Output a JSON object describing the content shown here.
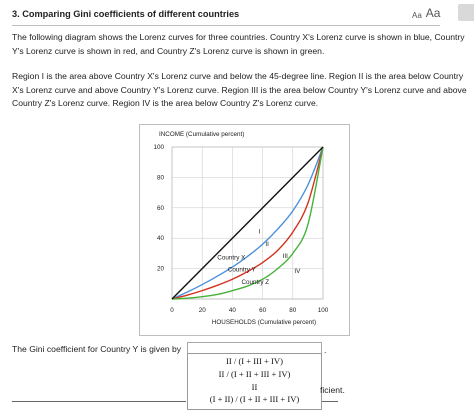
{
  "header": {
    "title": "3. Comparing Gini coefficients of different countries",
    "font_small": "Aa",
    "font_large": "Aa"
  },
  "text": {
    "p1": "The following diagram shows the Lorenz curves for three countries. Country X's Lorenz curve is shown in blue, Country Y's Lorenz curve is shown in red, and Country Z's Lorenz curve is shown in green.",
    "p2": "Region I is the area above Country X's Lorenz curve and below the 45-degree line. Region II is the area below Country X's Lorenz curve and above Country Y's Lorenz curve. Region III is the area below Country Y's Lorenz curve and above Country Z's Lorenz curve. Region IV is the area below Country Z's Lorenz curve."
  },
  "chart_data": {
    "type": "line",
    "ylabel": "INCOME (Cumulative percent)",
    "xlabel": "HOUSEHOLDS (Cumulative percent)",
    "xlim": [
      0,
      100
    ],
    "ylim": [
      0,
      100
    ],
    "x_ticks": [
      0,
      20,
      40,
      60,
      80,
      100
    ],
    "y_ticks": [
      20,
      40,
      60,
      80,
      100
    ],
    "grid": true,
    "series": [
      {
        "name": "Country X",
        "color": "#4a90d9",
        "x": [
          0,
          10,
          20,
          30,
          40,
          50,
          60,
          70,
          80,
          90,
          100
        ],
        "y": [
          0,
          4.5,
          9.5,
          15,
          21,
          28,
          36,
          46,
          58,
          75,
          100
        ]
      },
      {
        "name": "Country Y",
        "color": "#d2321e",
        "x": [
          0,
          10,
          20,
          30,
          40,
          50,
          60,
          70,
          80,
          90,
          100
        ],
        "y": [
          0,
          2.5,
          5.5,
          9,
          13,
          18,
          24,
          32,
          44,
          63,
          100
        ]
      },
      {
        "name": "Country Z",
        "color": "#46b23a",
        "x": [
          0,
          10,
          20,
          30,
          40,
          50,
          60,
          70,
          80,
          90,
          100
        ],
        "y": [
          0,
          0.5,
          1.5,
          3,
          5.5,
          8.5,
          13,
          20,
          30,
          49,
          100
        ]
      },
      {
        "name": "",
        "color": "#111111",
        "x": [
          0,
          100
        ],
        "y": [
          0,
          100
        ]
      }
    ],
    "curve_labels": [
      {
        "text": "Country X",
        "x": 30,
        "y": 26
      },
      {
        "text": "Country Y",
        "x": 37,
        "y": 18
      },
      {
        "text": "Country Z",
        "x": 46,
        "y": 10
      }
    ],
    "region_labels": [
      {
        "text": "I",
        "x": 58,
        "y": 43
      },
      {
        "text": "II",
        "x": 63,
        "y": 35
      },
      {
        "text": "III",
        "x": 75,
        "y": 27
      },
      {
        "text": "IV",
        "x": 83,
        "y": 17
      }
    ]
  },
  "question": {
    "prompt": "The Gini coefficient for Country Y is given by",
    "selected": "",
    "period": ".",
    "options": [
      "II / (I + III + IV)",
      "II / (I + II + III + IV)",
      "II",
      "(I + II) / (I + II + III + IV)"
    ],
    "suffix": "ficient."
  }
}
